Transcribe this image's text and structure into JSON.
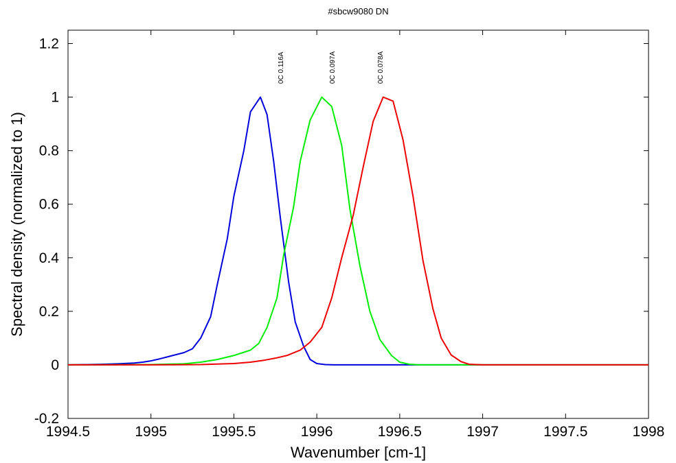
{
  "chart_data": {
    "type": "line",
    "title": "#sbcw9080 DN",
    "xlabel": "Wavenumber [cm-1]",
    "ylabel": "Spectral density (normalized to 1)",
    "xlim": [
      1994.5,
      1998
    ],
    "ylim": [
      -0.2,
      1.25
    ],
    "x_ticks": [
      1994.5,
      1995,
      1995.5,
      1996,
      1996.5,
      1997,
      1997.5,
      1998
    ],
    "x_tick_labels": [
      "1994.5",
      "1995",
      "1995.5",
      "1996",
      "1996.5",
      "1997",
      "1997.5",
      "1998"
    ],
    "y_ticks": [
      -0.2,
      0,
      0.2,
      0.4,
      0.6,
      0.8,
      1,
      1.2
    ],
    "y_tick_labels": [
      "-0.2",
      "0",
      "0.2",
      "0.4",
      "0.6",
      "0.8",
      "1",
      "1.2"
    ],
    "grid": false,
    "legend": "none",
    "annotations": [
      {
        "text": "0C 0.116A",
        "x": 1995.78,
        "y": 1.05
      },
      {
        "text": "0C 0.097A",
        "x": 1996.09,
        "y": 1.05
      },
      {
        "text": "0C 0.078A",
        "x": 1996.38,
        "y": 1.05
      }
    ],
    "series": [
      {
        "color": "#0000dd",
        "x": [
          1994.5,
          1994.6,
          1994.7,
          1994.8,
          1994.9,
          1994.95,
          1995.0,
          1995.05,
          1995.1,
          1995.15,
          1995.2,
          1995.25,
          1995.3,
          1995.36,
          1995.4,
          1995.46,
          1995.5,
          1995.56,
          1995.6,
          1995.66,
          1995.7,
          1995.74,
          1995.78,
          1995.83,
          1995.87,
          1995.92,
          1995.96,
          1996.0,
          1996.05,
          1996.1,
          1996.15,
          1996.2,
          1996.25,
          1996.3,
          1996.4,
          1996.6,
          1997.0,
          1997.5,
          1998.0
        ],
        "y": [
          0,
          0.001,
          0.002,
          0.004,
          0.007,
          0.01,
          0.015,
          0.022,
          0.03,
          0.038,
          0.046,
          0.06,
          0.1,
          0.18,
          0.3,
          0.47,
          0.63,
          0.8,
          0.945,
          1.0,
          0.935,
          0.76,
          0.55,
          0.31,
          0.16,
          0.07,
          0.02,
          0.005,
          0.001,
          0,
          0,
          0,
          0,
          0,
          0,
          0,
          0,
          0,
          0
        ]
      },
      {
        "color": "#00ee00",
        "x": [
          1994.5,
          1995.0,
          1995.2,
          1995.3,
          1995.4,
          1995.5,
          1995.55,
          1995.6,
          1995.65,
          1995.7,
          1995.76,
          1995.8,
          1995.86,
          1995.9,
          1995.96,
          1996.03,
          1996.09,
          1996.15,
          1996.2,
          1996.26,
          1996.32,
          1996.38,
          1996.45,
          1996.5,
          1996.56,
          1996.62,
          1996.7,
          1997.0,
          1997.5,
          1998.0
        ],
        "y": [
          0,
          0.001,
          0.004,
          0.01,
          0.02,
          0.035,
          0.045,
          0.055,
          0.08,
          0.14,
          0.25,
          0.41,
          0.59,
          0.76,
          0.915,
          1.0,
          0.965,
          0.82,
          0.58,
          0.37,
          0.2,
          0.095,
          0.035,
          0.01,
          0.002,
          0,
          0,
          0,
          0,
          0
        ]
      },
      {
        "color": "#ee0000",
        "x": [
          1994.5,
          1995.0,
          1995.3,
          1995.5,
          1995.6,
          1995.68,
          1995.75,
          1995.82,
          1995.9,
          1995.96,
          1996.03,
          1996.09,
          1996.15,
          1996.22,
          1996.28,
          1996.34,
          1996.4,
          1996.46,
          1996.52,
          1996.58,
          1996.64,
          1996.7,
          1996.75,
          1996.81,
          1996.87,
          1996.92,
          1997.0,
          1997.5,
          1998.0
        ],
        "y": [
          0,
          0,
          0.001,
          0.005,
          0.01,
          0.017,
          0.025,
          0.035,
          0.055,
          0.085,
          0.14,
          0.25,
          0.4,
          0.56,
          0.74,
          0.91,
          1.0,
          0.985,
          0.84,
          0.63,
          0.39,
          0.21,
          0.1,
          0.037,
          0.012,
          0.002,
          0,
          0,
          0
        ]
      }
    ]
  }
}
